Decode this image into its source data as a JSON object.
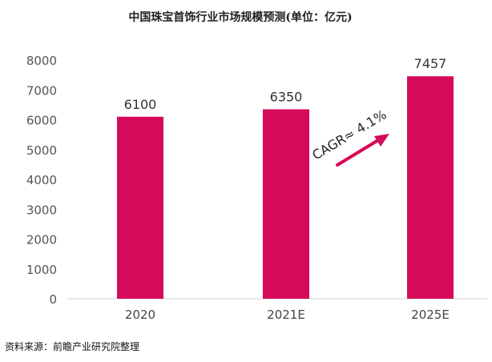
{
  "chart_data": {
    "type": "bar",
    "title": "中国珠宝首饰行业市场规模预测(单位：亿元)",
    "categories": [
      "2020",
      "2021E",
      "2025E"
    ],
    "values": [
      6100,
      6350,
      7457
    ],
    "ylim": [
      0,
      8000
    ],
    "yticks": [
      0,
      1000,
      2000,
      3000,
      4000,
      5000,
      6000,
      7000,
      8000
    ],
    "xlabel": "",
    "ylabel": "",
    "grid": false,
    "bar_color": "#D6095A",
    "annotation": {
      "text": "CAGR≈ 4.1%",
      "arrow_color": "#D6095A"
    }
  },
  "source": "资料来源：前瞻产业研究院整理"
}
